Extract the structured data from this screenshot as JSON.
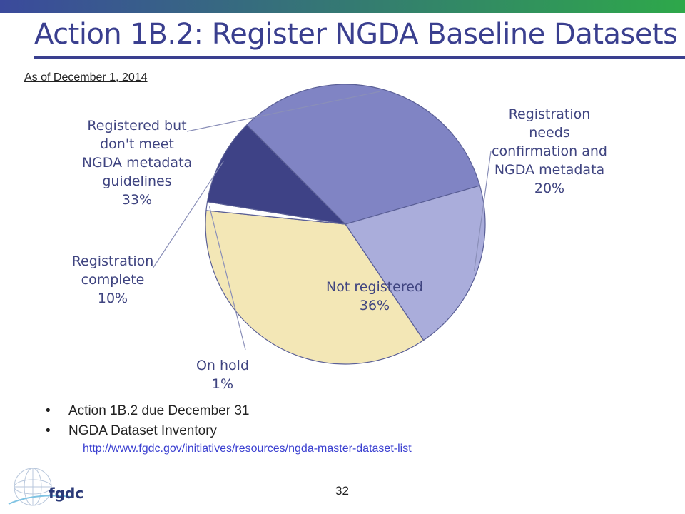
{
  "slide": {
    "title": "Action 1B.2: Register NGDA Baseline Datasets",
    "as_of": "As of December 1, 2014",
    "page_number": "32"
  },
  "bullets": [
    "Action 1B.2 due December 31",
    "NGDA Dataset Inventory"
  ],
  "link": {
    "text": "http://www.fgdc.gov/initiatives/resources/ngda-master-dataset-list"
  },
  "logo": {
    "text": "fgdc"
  },
  "colors": {
    "title": "#3a3f8f",
    "band_start": "#3b4a9c",
    "band_end": "#2ea84a",
    "body_text": "#222222",
    "link": "#3a3fd0",
    "label_text": "#3f4480",
    "leader": "#8a8fb8",
    "slice_edge": "#5a5f96"
  },
  "chart_data": {
    "type": "pie",
    "slices": [
      {
        "name": "Registration needs confirmation and NGDA metadata",
        "value": 20,
        "label_lines": [
          "Registration",
          "needs",
          "confirmation and",
          "NGDA metadata",
          "20%"
        ],
        "color": "#aaaddb"
      },
      {
        "name": "Not registered",
        "value": 36,
        "label_lines": [
          "Not registered",
          "36%"
        ],
        "color": "#f3e7b6"
      },
      {
        "name": "On hold",
        "value": 1,
        "label_lines": [
          "On hold",
          "1%"
        ],
        "color": "#ffffff"
      },
      {
        "name": "Registration complete",
        "value": 10,
        "label_lines": [
          "Registration",
          "complete",
          "10%"
        ],
        "color": "#3e4286"
      },
      {
        "name": "Registered but don't meet NGDA metadata guidelines",
        "value": 33,
        "label_lines": [
          "Registered but",
          "don't meet",
          "NGDA metadata",
          "guidelines",
          "33%"
        ],
        "color": "#8084c4"
      }
    ]
  }
}
